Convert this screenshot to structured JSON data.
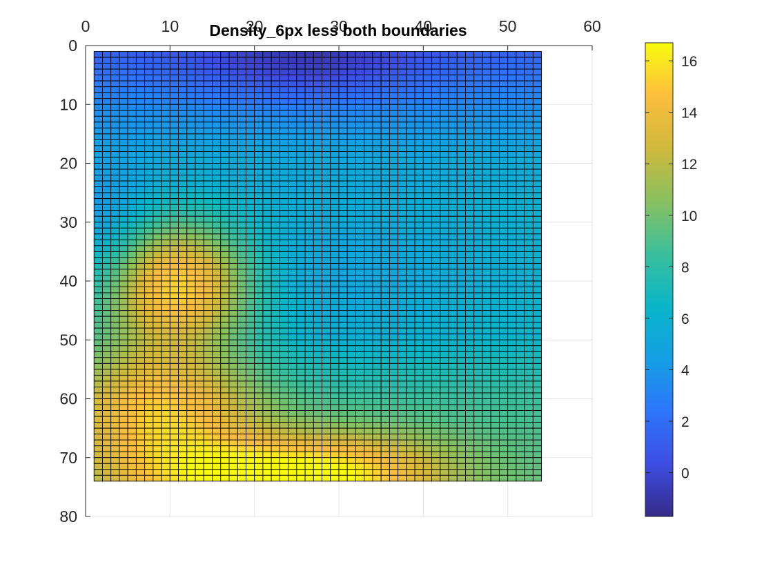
{
  "chart_data": {
    "type": "heatmap",
    "title": "Density_6px less both boundaries",
    "xlabel": "",
    "ylabel": "",
    "xlim": [
      0,
      60
    ],
    "ylim": [
      0,
      80
    ],
    "y_reversed": true,
    "x_axis_location": "top",
    "x_ticks": [
      0,
      10,
      20,
      30,
      40,
      50,
      60
    ],
    "y_ticks": [
      0,
      10,
      20,
      30,
      40,
      50,
      60,
      70,
      80
    ],
    "grid": true,
    "colormap": "parula",
    "edge_color": "#000000",
    "grid_x": [
      1,
      54
    ],
    "grid_y": [
      1,
      74
    ],
    "colorbar": {
      "location": "right",
      "limits": [
        -1.7,
        16.7
      ],
      "ticks": [
        0,
        2,
        4,
        6,
        8,
        10,
        12,
        14,
        16
      ]
    },
    "surface_model": {
      "description": "approximate density field; values in colorbar units",
      "base": [
        {
          "y": 1,
          "v": 1.5
        },
        {
          "y": 10,
          "v": 3.5
        },
        {
          "y": 20,
          "v": 5.5
        },
        {
          "y": 30,
          "v": 6.0
        },
        {
          "y": 40,
          "v": 6.0
        },
        {
          "y": 50,
          "v": 6.5
        },
        {
          "y": 60,
          "v": 8.5
        },
        {
          "y": 74,
          "v": 9.5
        }
      ],
      "features": [
        {
          "x": 11,
          "y": 40,
          "amp": 9.0,
          "sx": 6.0,
          "sy": 7.0
        },
        {
          "x": 9,
          "y": 62,
          "amp": 6.5,
          "sx": 8.0,
          "sy": 10.0
        },
        {
          "x": 22,
          "y": 74,
          "amp": 7.0,
          "sx": 9.0,
          "sy": 5.0
        },
        {
          "x": 34,
          "y": 72,
          "amp": 3.5,
          "sx": 8.0,
          "sy": 5.0
        },
        {
          "x": 26,
          "y": 3,
          "amp": -2.5,
          "sx": 10.0,
          "sy": 5.0
        },
        {
          "x": 2,
          "y": 30,
          "amp": -2.0,
          "sx": 4.0,
          "sy": 8.0
        },
        {
          "x": 30,
          "y": 40,
          "amp": -1.0,
          "sx": 10.0,
          "sy": 12.0
        }
      ]
    }
  },
  "colors": {
    "background": "#ffffff",
    "axis": "#262626",
    "gridline": "#e3e3e3",
    "parula": [
      "#352a87",
      "#3d4de3",
      "#2d76fb",
      "#149fe4",
      "#09b6c8",
      "#3bbf9b",
      "#89c05f",
      "#d0b93c",
      "#fcbe3d",
      "#f9fb0e"
    ]
  }
}
